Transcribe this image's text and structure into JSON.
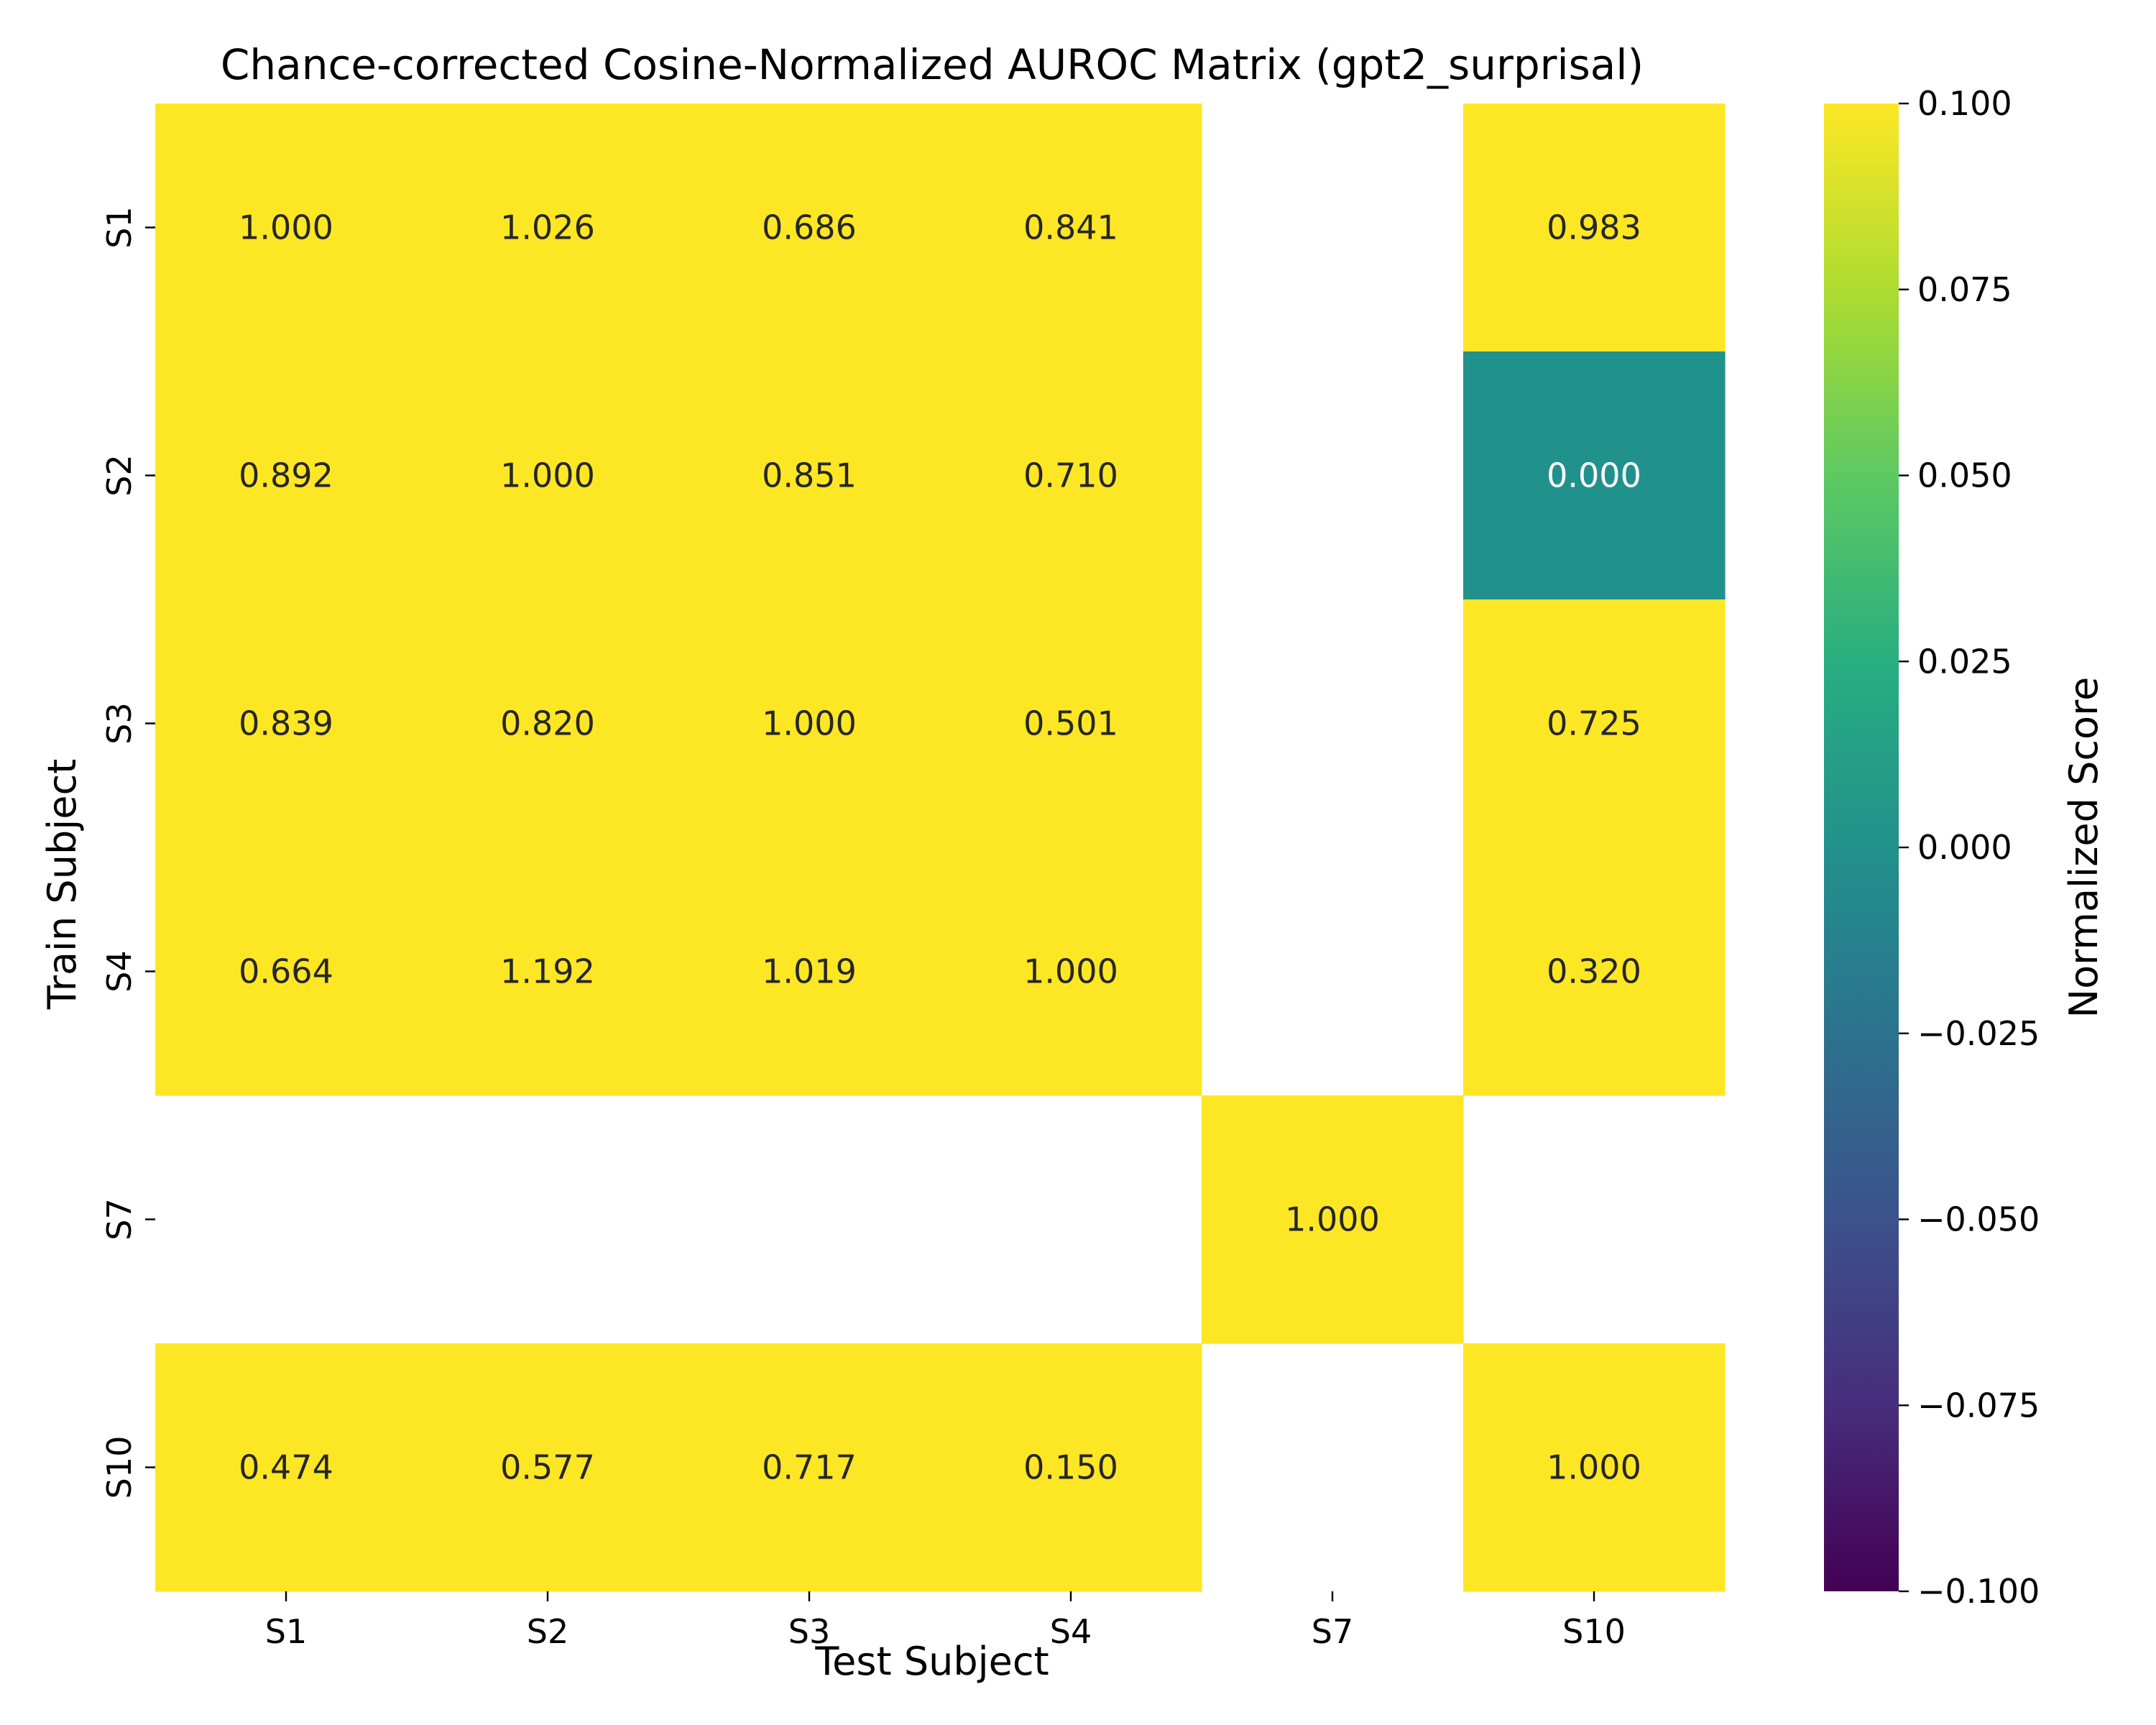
{
  "chart_data": {
    "type": "heatmap",
    "title": "Chance-corrected Cosine-Normalized AUROC Matrix (gpt2_surprisal)",
    "xlabel": "Test Subject",
    "ylabel": "Train Subject",
    "x_categories": [
      "S1",
      "S2",
      "S3",
      "S4",
      "S7",
      "S10"
    ],
    "y_categories": [
      "S1",
      "S2",
      "S3",
      "S4",
      "S7",
      "S10"
    ],
    "values": [
      [
        1.0,
        1.026,
        0.686,
        0.841,
        null,
        0.983
      ],
      [
        0.892,
        1.0,
        0.851,
        0.71,
        null,
        0.0
      ],
      [
        0.839,
        0.82,
        1.0,
        0.501,
        null,
        0.725
      ],
      [
        0.664,
        1.192,
        1.019,
        1.0,
        null,
        0.32
      ],
      [
        null,
        null,
        null,
        null,
        1.0,
        null
      ],
      [
        0.474,
        0.577,
        0.717,
        0.15,
        null,
        1.0
      ]
    ],
    "cell_labels": [
      [
        "1.000",
        "1.026",
        "0.686",
        "0.841",
        "",
        "0.983"
      ],
      [
        "0.892",
        "1.000",
        "0.851",
        "0.710",
        "",
        "0.000"
      ],
      [
        "0.839",
        "0.820",
        "1.000",
        "0.501",
        "",
        "0.725"
      ],
      [
        "0.664",
        "1.192",
        "1.019",
        "1.000",
        "",
        "0.320"
      ],
      [
        "",
        "",
        "",
        "",
        "1.000",
        ""
      ],
      [
        "0.474",
        "0.577",
        "0.717",
        "0.150",
        "",
        "1.000"
      ]
    ],
    "colorbar": {
      "label": "Normalized Score",
      "colormap": "viridis",
      "range": [
        -0.1,
        0.1
      ],
      "ticks": [
        0.1,
        0.075,
        0.05,
        0.025,
        0.0,
        -0.025,
        -0.05,
        -0.075,
        -0.1
      ],
      "tick_labels": [
        "0.100",
        "0.075",
        "0.050",
        "0.025",
        "0.000",
        "−0.025",
        "−0.050",
        "−0.075",
        "−0.100"
      ]
    },
    "colors": {
      "high": "#fde725",
      "mid": "#21918c",
      "low": "#440154",
      "missing": "#ffffff"
    }
  }
}
